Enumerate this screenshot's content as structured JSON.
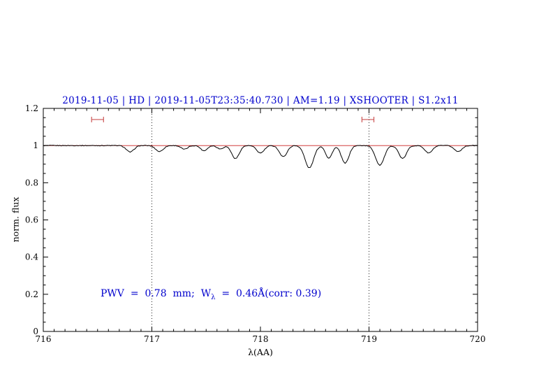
{
  "chart_data": {
    "type": "line",
    "title": "2019-11-05 | HD | 2019-11-05T23:35:40.730 | AM=1.19 | XSHOOTER | S1.2x11",
    "xlabel": "λ(AA)",
    "ylabel": "norm. flux",
    "xlim": [
      716,
      720
    ],
    "ylim": [
      0,
      1.2
    ],
    "x_major_ticks": [
      716,
      717,
      718,
      719,
      720
    ],
    "x_tick_labels": [
      "716",
      "717",
      "718",
      "719",
      "720"
    ],
    "x_minor_step": 0.1,
    "y_major_ticks": [
      0,
      0.2,
      0.4,
      0.6,
      0.8,
      1.0,
      1.2
    ],
    "y_tick_labels": [
      "0",
      "0.2",
      "0.4",
      "0.6",
      "0.8",
      "1",
      "1.2"
    ],
    "y_minor_step": 0.05,
    "grid": false,
    "legend": "none",
    "dotted_vlines": [
      717,
      719
    ],
    "continuum_level": 1.0,
    "pwv_mm": 0.78,
    "w_lambda_angstrom": 0.46,
    "corr": 0.39,
    "markers": [
      {
        "x_center": 716.5,
        "half_width": 0.055,
        "y": 1.14
      },
      {
        "x_center": 718.99,
        "half_width": 0.055,
        "y": 1.14
      }
    ],
    "spectrum": {
      "x_start": 716.0,
      "x_end": 720.0,
      "x_step": 0.01,
      "continuum": 1.0,
      "noise_amplitude": 0.002,
      "absorption_lines": [
        {
          "center": 716.8,
          "depth": 0.035,
          "sigma": 0.035
        },
        {
          "center": 717.07,
          "depth": 0.032,
          "sigma": 0.035
        },
        {
          "center": 717.3,
          "depth": 0.02,
          "sigma": 0.03
        },
        {
          "center": 717.48,
          "depth": 0.028,
          "sigma": 0.03
        },
        {
          "center": 717.63,
          "depth": 0.018,
          "sigma": 0.028
        },
        {
          "center": 717.77,
          "depth": 0.07,
          "sigma": 0.035
        },
        {
          "center": 718.0,
          "depth": 0.04,
          "sigma": 0.035
        },
        {
          "center": 718.21,
          "depth": 0.06,
          "sigma": 0.035
        },
        {
          "center": 718.45,
          "depth": 0.12,
          "sigma": 0.04
        },
        {
          "center": 718.63,
          "depth": 0.068,
          "sigma": 0.03
        },
        {
          "center": 718.78,
          "depth": 0.095,
          "sigma": 0.035
        },
        {
          "center": 719.1,
          "depth": 0.105,
          "sigma": 0.04
        },
        {
          "center": 719.31,
          "depth": 0.07,
          "sigma": 0.035
        },
        {
          "center": 719.55,
          "depth": 0.04,
          "sigma": 0.035
        },
        {
          "center": 719.82,
          "depth": 0.032,
          "sigma": 0.035
        }
      ]
    }
  },
  "annotation": {
    "part1": "PWV  =  0.78  mm;  W",
    "sub": "λ",
    "part2": "  =  0.46Å(corr: 0.39)"
  },
  "colors": {
    "title_text": "#0000cd",
    "annotation_text": "#0000cd",
    "spectrum_line": "#000000",
    "continuum_line": "#cc2222",
    "marker": "#cc5555",
    "vline": "#222222",
    "axis": "#000000",
    "tick_label": "#000000"
  }
}
